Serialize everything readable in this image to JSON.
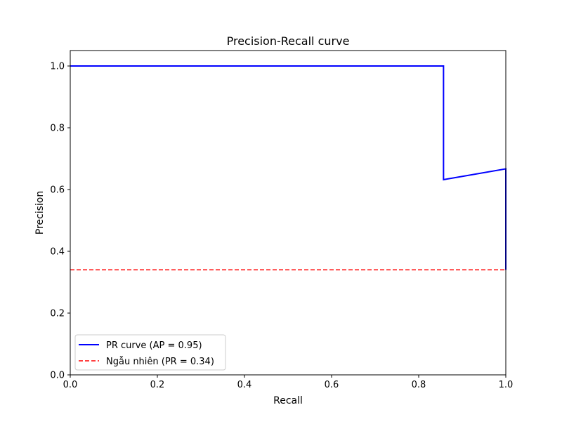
{
  "chart_data": {
    "type": "line",
    "title": "Precision-Recall curve",
    "xlabel": "Recall",
    "ylabel": "Precision",
    "xlim": [
      0.0,
      1.0
    ],
    "ylim": [
      0.0,
      1.05
    ],
    "xticks": [
      0.0,
      0.2,
      0.4,
      0.6,
      0.8,
      1.0
    ],
    "xtick_labels": [
      "0.0",
      "0.2",
      "0.4",
      "0.6",
      "0.8",
      "1.0"
    ],
    "yticks": [
      0.0,
      0.2,
      0.4,
      0.6,
      0.8,
      1.0
    ],
    "ytick_labels": [
      "0.0",
      "0.2",
      "0.4",
      "0.6",
      "0.8",
      "1.0"
    ],
    "grid": false,
    "legend_position": "lower-left",
    "series": [
      {
        "name": "PR curve (AP = 0.95)",
        "color": "#0000ff",
        "style": "solid",
        "x": [
          0.0,
          0.857,
          0.857,
          1.0,
          1.0
        ],
        "y": [
          1.0,
          1.0,
          0.632,
          0.667,
          0.34
        ]
      },
      {
        "name": "Ngẫu nhiên (PR = 0.34)",
        "color": "#ff0000",
        "style": "dashed",
        "x": [
          0.0,
          1.0
        ],
        "y": [
          0.34,
          0.34
        ]
      }
    ]
  }
}
